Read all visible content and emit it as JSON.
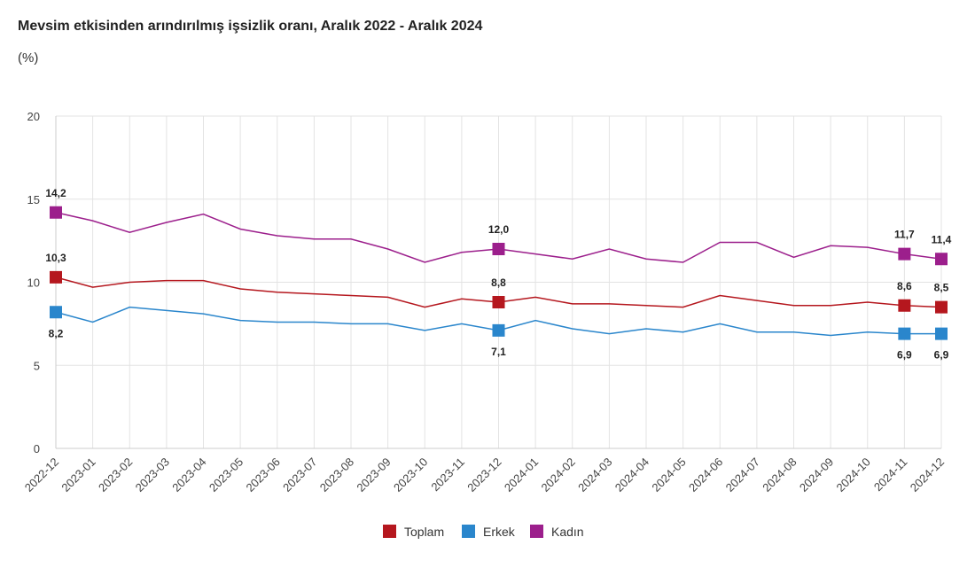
{
  "title": "Mevsim etkisinden arındırılmış işsizlik oranı, Aralık 2022 - Aralık 2024",
  "unit": "(%)",
  "chart_data": {
    "type": "line",
    "title": "Mevsim etkisinden arındırılmış işsizlik oranı, Aralık 2022 - Aralık 2024",
    "ylabel": "(%)",
    "ylim": [
      0,
      20
    ],
    "yticks": [
      0,
      5,
      10,
      15,
      20
    ],
    "grid": true,
    "legend": "bottom",
    "categories": [
      "2022-12",
      "2023-01",
      "2023-02",
      "2023-03",
      "2023-04",
      "2023-05",
      "2023-06",
      "2023-07",
      "2023-08",
      "2023-09",
      "2023-10",
      "2023-11",
      "2023-12",
      "2024-01",
      "2024-02",
      "2024-03",
      "2024-04",
      "2024-05",
      "2024-06",
      "2024-07",
      "2024-08",
      "2024-09",
      "2024-10",
      "2024-11",
      "2024-12"
    ],
    "labeled_indices": [
      0,
      12,
      23,
      24
    ],
    "series": [
      {
        "name": "Toplam",
        "color": "#b5171e",
        "label_position": "above",
        "values": [
          10.3,
          9.7,
          10.0,
          10.1,
          10.1,
          9.6,
          9.4,
          9.3,
          9.2,
          9.1,
          8.5,
          9.0,
          8.8,
          9.1,
          8.7,
          8.7,
          8.6,
          8.5,
          9.2,
          8.9,
          8.6,
          8.6,
          8.8,
          8.6,
          8.5
        ]
      },
      {
        "name": "Erkek",
        "color": "#2a86cc",
        "label_position": "below",
        "values": [
          8.2,
          7.6,
          8.5,
          8.3,
          8.1,
          7.7,
          7.6,
          7.6,
          7.5,
          7.5,
          7.1,
          7.5,
          7.1,
          7.7,
          7.2,
          6.9,
          7.2,
          7.0,
          7.5,
          7.0,
          7.0,
          6.8,
          7.0,
          6.9,
          6.9
        ]
      },
      {
        "name": "Kadın",
        "color": "#9c1f8c",
        "label_position": "above",
        "values": [
          14.2,
          13.7,
          13.0,
          13.6,
          14.1,
          13.2,
          12.8,
          12.6,
          12.6,
          12.0,
          11.2,
          11.8,
          12.0,
          11.7,
          11.4,
          12.0,
          11.4,
          11.2,
          12.4,
          12.4,
          11.5,
          12.2,
          12.1,
          11.7,
          11.4
        ]
      }
    ]
  }
}
